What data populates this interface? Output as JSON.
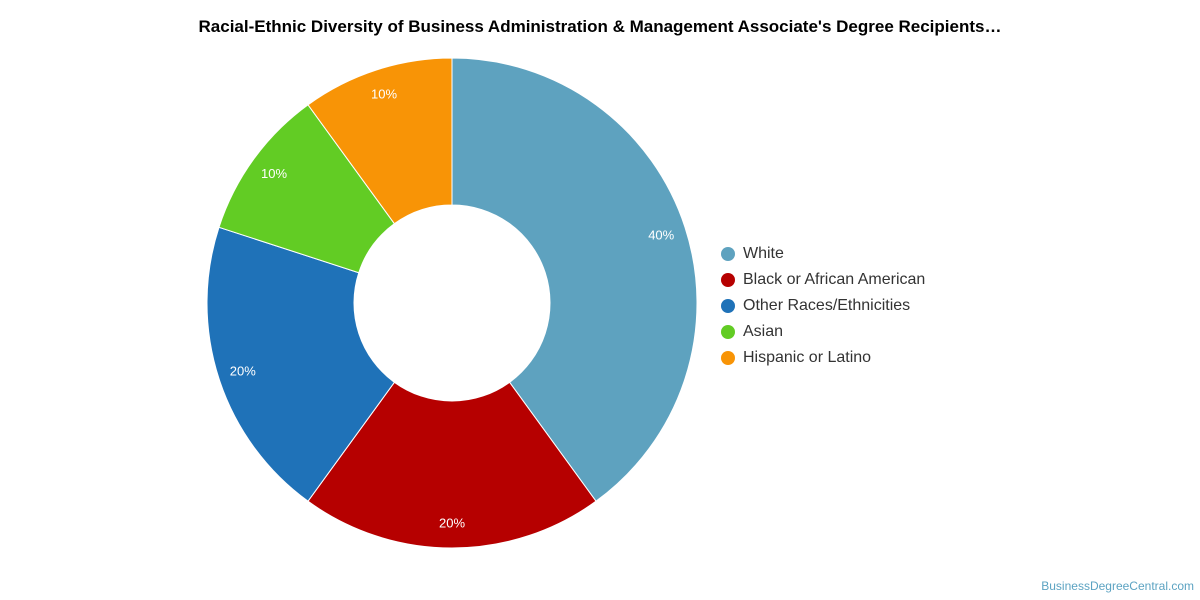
{
  "chart_data": {
    "type": "pie",
    "variant": "donut",
    "title": "Racial-Ethnic Diversity of Business Administration & Management Associate's Degree Recipients…",
    "series": [
      {
        "name": "White",
        "value": 40,
        "label": "40%",
        "color": "#5ea2bf"
      },
      {
        "name": "Black or African American",
        "value": 20,
        "label": "20%",
        "color": "#b60000"
      },
      {
        "name": "Other Races/Ethnicities",
        "value": 20,
        "label": "20%",
        "color": "#1f72b8"
      },
      {
        "name": "Asian",
        "value": 10,
        "label": "10%",
        "color": "#62cc24"
      },
      {
        "name": "Hispanic or Latino",
        "value": 10,
        "label": "10%",
        "color": "#f89406"
      }
    ],
    "legend_position": "right"
  },
  "footer": {
    "source": "BusinessDegreeCentral.com"
  }
}
